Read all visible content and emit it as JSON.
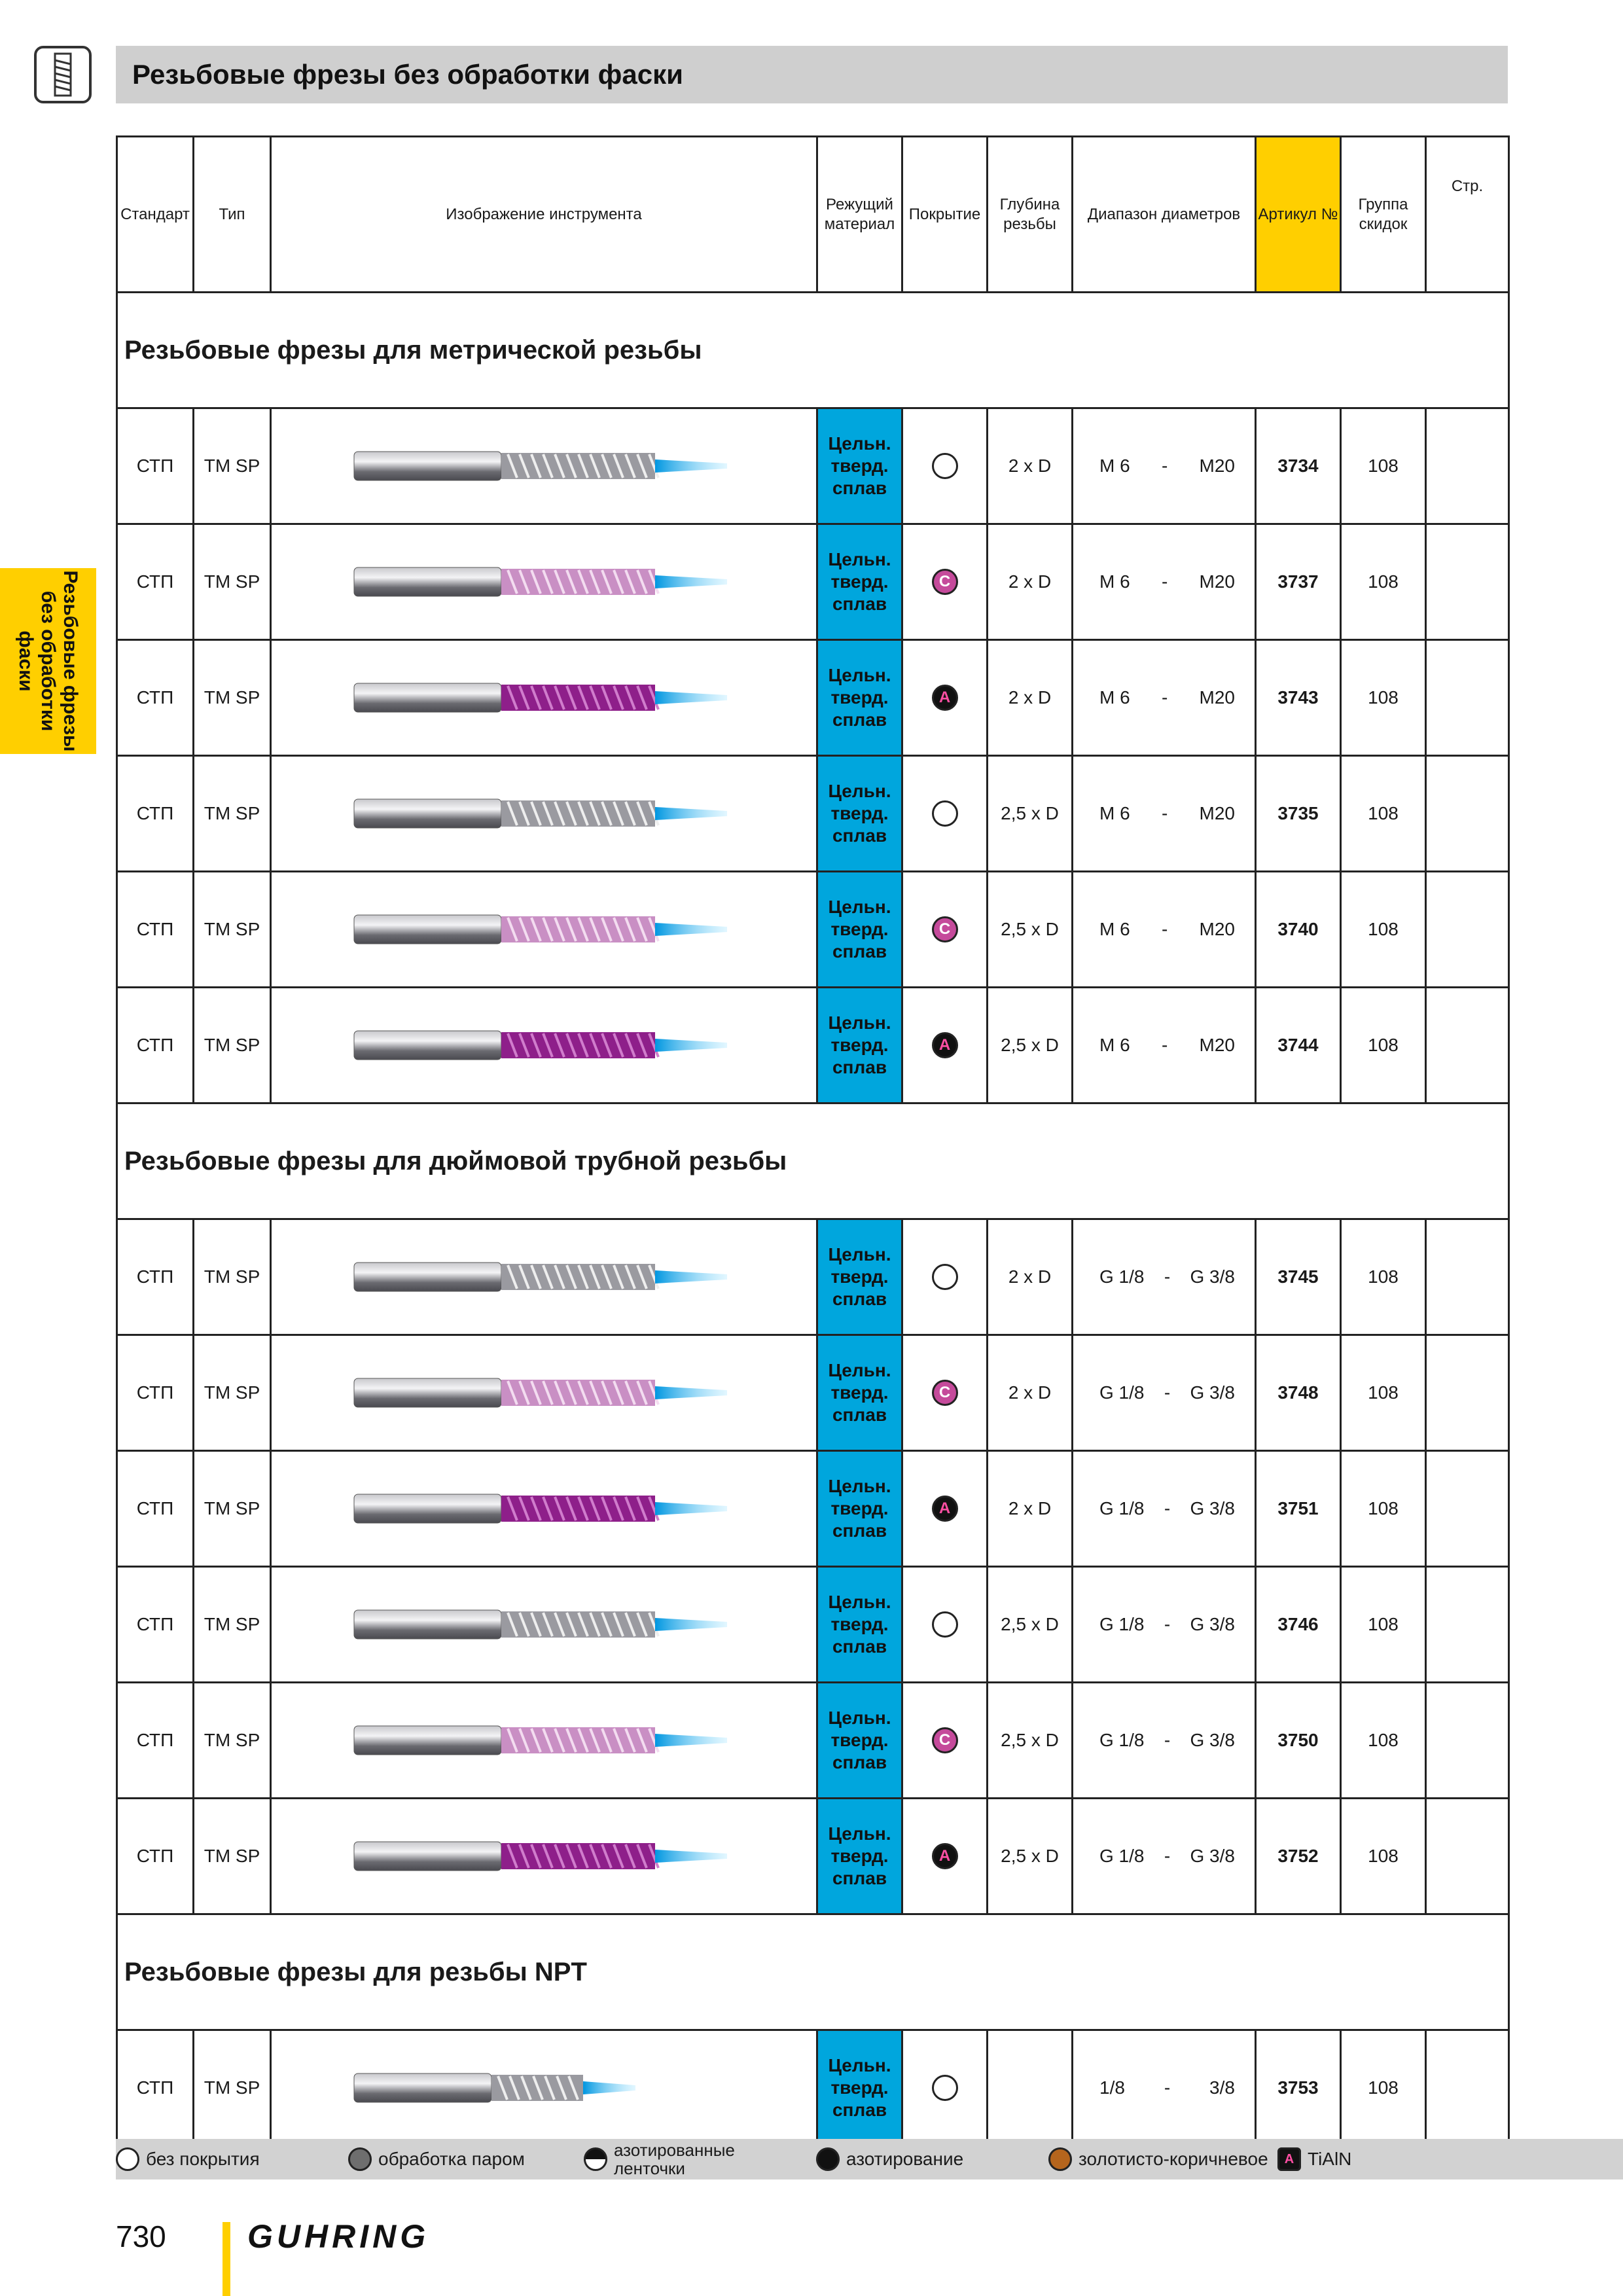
{
  "header": {
    "title": "Резьбовые фрезы без обработки фаски"
  },
  "side_tab": {
    "label": "Резьбовые фрезы\nбез обработки\nфаски"
  },
  "table": {
    "headers": {
      "standard": "Стандарт",
      "type": "Тип",
      "image": "Изображение инструмента",
      "material": "Режущий материал",
      "coating": "Покрытие",
      "depth": "Глубина резьбы",
      "diameter": "Диапазон диаметров",
      "article": "Артикул №",
      "discount": "Группа скидок",
      "page": "Стр."
    },
    "sections": [
      {
        "title": "Резьбовые фрезы для метрической резьбы",
        "rows": [
          {
            "std": "СТП",
            "type": "TM SP",
            "coating": "none",
            "mark": "",
            "depth": "2 x D",
            "d_from": "M 6",
            "sep": "-",
            "d_to": "M20",
            "article": "3734",
            "group": "108",
            "tool": "plain",
            "long": true
          },
          {
            "std": "СТП",
            "type": "TM SP",
            "coating": "c",
            "mark": "C",
            "depth": "2 x D",
            "d_from": "M 6",
            "sep": "-",
            "d_to": "M20",
            "article": "3737",
            "group": "108",
            "tool": "pink",
            "long": true
          },
          {
            "std": "СТП",
            "type": "TM SP",
            "coating": "a",
            "mark": "A",
            "depth": "2 x D",
            "d_from": "M 6",
            "sep": "-",
            "d_to": "M20",
            "article": "3743",
            "group": "108",
            "tool": "purple",
            "long": true
          },
          {
            "std": "СТП",
            "type": "TM SP",
            "coating": "none",
            "mark": "",
            "depth": "2,5 x D",
            "d_from": "M 6",
            "sep": "-",
            "d_to": "M20",
            "article": "3735",
            "group": "108",
            "tool": "plain",
            "long": true
          },
          {
            "std": "СТП",
            "type": "TM SP",
            "coating": "c",
            "mark": "C",
            "depth": "2,5 x D",
            "d_from": "M 6",
            "sep": "-",
            "d_to": "M20",
            "article": "3740",
            "group": "108",
            "tool": "pink",
            "long": true
          },
          {
            "std": "СТП",
            "type": "TM SP",
            "coating": "a",
            "mark": "A",
            "depth": "2,5 x D",
            "d_from": "M 6",
            "sep": "-",
            "d_to": "M20",
            "article": "3744",
            "group": "108",
            "tool": "purple",
            "long": true
          }
        ]
      },
      {
        "title": "Резьбовые фрезы для дюймовой трубной резьбы",
        "rows": [
          {
            "std": "СТП",
            "type": "TM SP",
            "coating": "none",
            "mark": "",
            "depth": "2 x D",
            "d_from": "G 1/8",
            "sep": "-",
            "d_to": "G 3/8",
            "article": "3745",
            "group": "108",
            "tool": "plain",
            "long": true
          },
          {
            "std": "СТП",
            "type": "TM SP",
            "coating": "c",
            "mark": "C",
            "depth": "2 x D",
            "d_from": "G 1/8",
            "sep": "-",
            "d_to": "G 3/8",
            "article": "3748",
            "group": "108",
            "tool": "pink",
            "long": true
          },
          {
            "std": "СТП",
            "type": "TM SP",
            "coating": "a",
            "mark": "A",
            "depth": "2 x D",
            "d_from": "G 1/8",
            "sep": "-",
            "d_to": "G 3/8",
            "article": "3751",
            "group": "108",
            "tool": "purple",
            "long": true
          },
          {
            "std": "СТП",
            "type": "TM SP",
            "coating": "none",
            "mark": "",
            "depth": "2,5 x D",
            "d_from": "G 1/8",
            "sep": "-",
            "d_to": "G 3/8",
            "article": "3746",
            "group": "108",
            "tool": "plain",
            "long": true
          },
          {
            "std": "СТП",
            "type": "TM SP",
            "coating": "c",
            "mark": "C",
            "depth": "2,5 x D",
            "d_from": "G 1/8",
            "sep": "-",
            "d_to": "G 3/8",
            "article": "3750",
            "group": "108",
            "tool": "pink",
            "long": true
          },
          {
            "std": "СТП",
            "type": "TM SP",
            "coating": "a",
            "mark": "A",
            "depth": "2,5 x D",
            "d_from": "G 1/8",
            "sep": "-",
            "d_to": "G 3/8",
            "article": "3752",
            "group": "108",
            "tool": "purple",
            "long": true
          }
        ]
      },
      {
        "title": "Резьбовые фрезы для резьбы NPT",
        "rows": [
          {
            "std": "СТП",
            "type": "TM SP",
            "coating": "none",
            "mark": "",
            "depth": "",
            "d_from": "1/8",
            "sep": "-",
            "d_to": "3/8",
            "article": "3753",
            "group": "108",
            "tool": "plain",
            "long": false
          }
        ]
      }
    ],
    "material_label": "Цельн.\nтверд.\nсплав"
  },
  "legend": [
    {
      "label": "без покрытия",
      "fill": "#ffffff",
      "small": false
    },
    {
      "label": "обработка паром",
      "fill": "#6e6e6e",
      "small": false
    },
    {
      "label": "азотированные\nленточки",
      "fill": "half",
      "small": true
    },
    {
      "label": "азотирование",
      "fill": "#111111",
      "small": false
    },
    {
      "label": "золотисто-коричневое",
      "fill": "#b5651d",
      "small": false
    },
    {
      "label": "TiAlN",
      "fill": "tialn",
      "small": false
    }
  ],
  "footer": {
    "page_number": "730",
    "brand": "GUHRING"
  },
  "colors": {
    "accent_yellow": "#ffcf00",
    "material_blue": "#00a6dd",
    "header_gray": "#cfcfcf"
  }
}
